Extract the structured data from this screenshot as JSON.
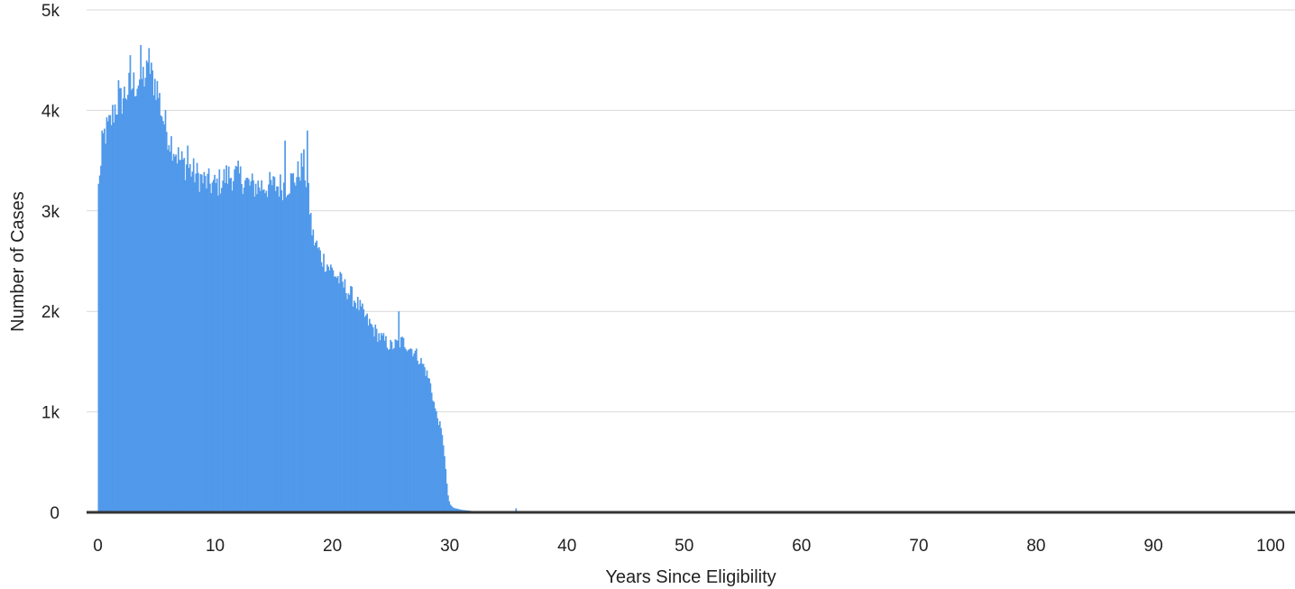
{
  "chart_data": {
    "type": "bar",
    "title": "",
    "xlabel": "Years Since Eligibility",
    "ylabel": "Number of Cases",
    "xlim": [
      -1,
      101
    ],
    "ylim": [
      0,
      5000
    ],
    "x_ticks": [
      0,
      10,
      20,
      30,
      40,
      50,
      60,
      70,
      80,
      90,
      100
    ],
    "x_tick_labels": [
      "0",
      "10",
      "20",
      "30",
      "40",
      "50",
      "60",
      "70",
      "80",
      "90",
      "100"
    ],
    "y_ticks": [
      0,
      1000,
      2000,
      3000,
      4000,
      5000
    ],
    "y_tick_labels": [
      "0",
      "1k",
      "2k",
      "3k",
      "4k",
      "5k"
    ],
    "grid": true,
    "bar_color": "#5199ea",
    "baseline_color": "#333333",
    "bin_width_years": 0.1,
    "profile": {
      "x": [
        0.0,
        0.1,
        0.3,
        0.5,
        1.0,
        1.5,
        2.0,
        2.5,
        3.0,
        3.5,
        4.0,
        4.5,
        5.0,
        5.5,
        6.0,
        7.0,
        8.0,
        9.0,
        10.0,
        11.0,
        12.0,
        13.0,
        14.0,
        15.0,
        16.0,
        17.0,
        17.5,
        17.9,
        18.3,
        19.0,
        20.0,
        21.0,
        22.0,
        23.0,
        24.0,
        25.0,
        26.0,
        27.0,
        27.8,
        28.3,
        28.8,
        29.2,
        29.5,
        29.8,
        30.0,
        30.3,
        31.0,
        32.0,
        33.0,
        35.0,
        36.0,
        40.0,
        101.0
      ],
      "y": [
        3100,
        3350,
        3600,
        3750,
        3850,
        4050,
        4100,
        4200,
        4250,
        4300,
        4350,
        4350,
        4250,
        3950,
        3750,
        3500,
        3400,
        3300,
        3250,
        3350,
        3350,
        3250,
        3250,
        3250,
        3250,
        3350,
        3500,
        3200,
        2750,
        2550,
        2400,
        2250,
        2100,
        1900,
        1750,
        1650,
        1700,
        1600,
        1450,
        1300,
        1000,
        850,
        650,
        200,
        80,
        45,
        25,
        12,
        5,
        3,
        0,
        0,
        0
      ]
    },
    "spikes": [
      {
        "x": 0.2,
        "y": 3450
      },
      {
        "x": 1.7,
        "y": 4300
      },
      {
        "x": 2.7,
        "y": 4550
      },
      {
        "x": 3.6,
        "y": 4650
      },
      {
        "x": 4.3,
        "y": 4620
      },
      {
        "x": 5.3,
        "y": 3950
      },
      {
        "x": 7.6,
        "y": 3650
      },
      {
        "x": 15.9,
        "y": 3700
      },
      {
        "x": 17.8,
        "y": 3800
      },
      {
        "x": 25.6,
        "y": 2000
      },
      {
        "x": 35.6,
        "y": 40
      }
    ]
  }
}
